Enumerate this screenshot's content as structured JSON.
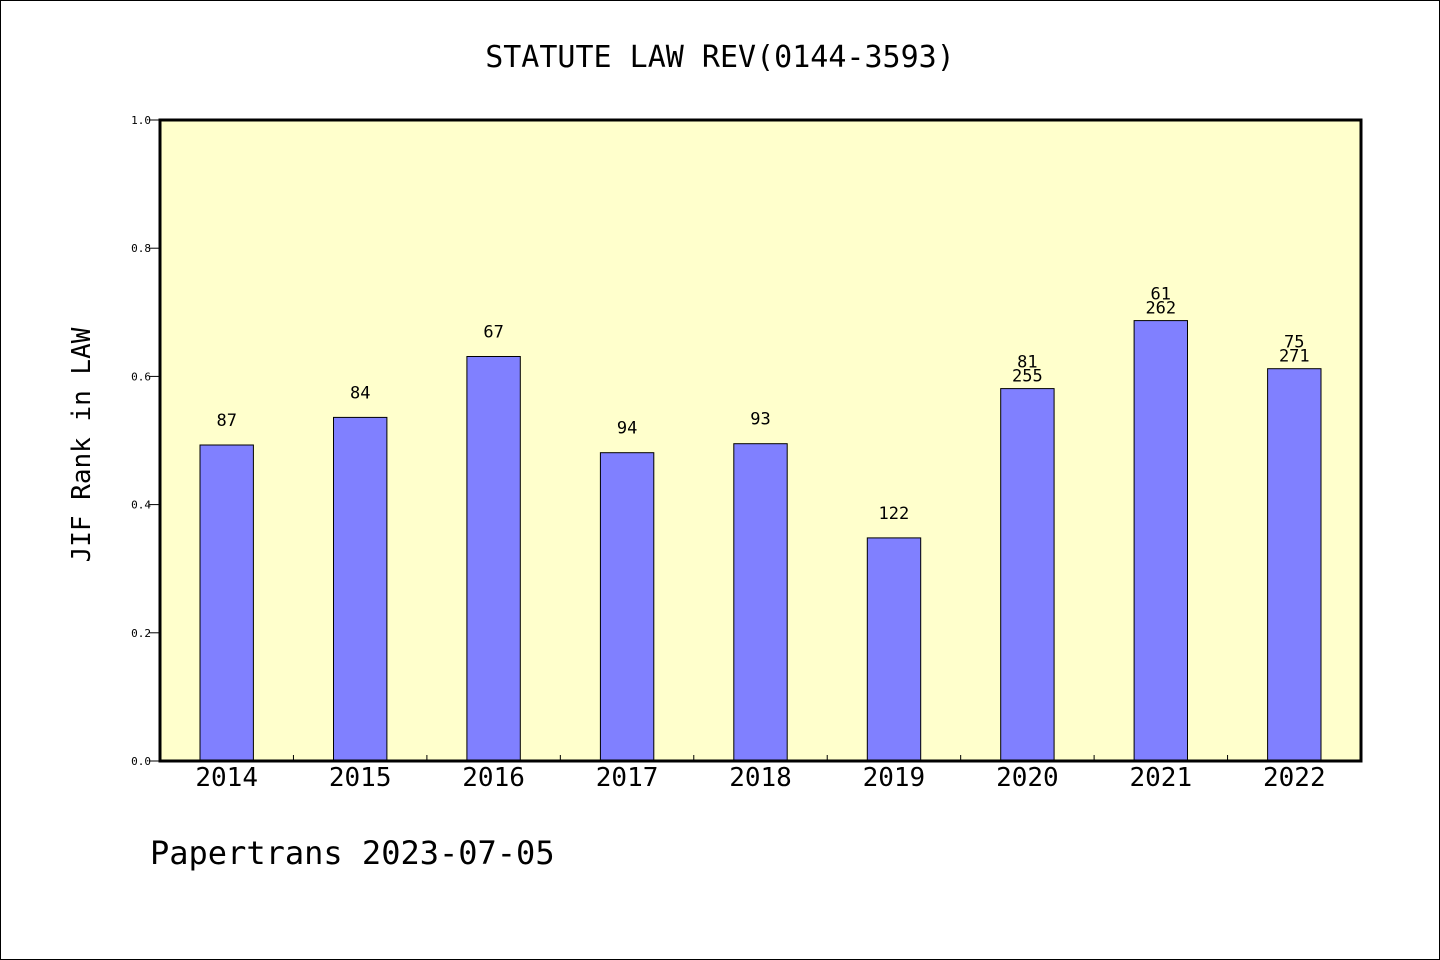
{
  "chart_data": {
    "type": "bar",
    "title": "STATUTE LAW REV(0144-3593)",
    "xlabel": "",
    "ylabel": "JIF Rank in LAW",
    "ylim": [
      0,
      1.0
    ],
    "yticks": [
      "0.0",
      "0.2",
      "0.4",
      "0.6",
      "0.8",
      "1.0"
    ],
    "categories": [
      "2014",
      "2015",
      "2016",
      "2017",
      "2018",
      "2019",
      "2020",
      "2021",
      "2022"
    ],
    "values": [
      0.493,
      0.536,
      0.631,
      0.481,
      0.495,
      0.348,
      0.581,
      0.687,
      0.612
    ],
    "data_labels": [
      [
        "87"
      ],
      [
        "84"
      ],
      [
        "67"
      ],
      [
        "94"
      ],
      [
        "93"
      ],
      [
        "122"
      ],
      [
        "81",
        "255"
      ],
      [
        "61",
        "262"
      ],
      [
        "75",
        "271"
      ]
    ],
    "plot_background": "#ffffcc",
    "bar_color": "#8080ff",
    "grid": false
  },
  "footer": "Papertrans 2023-07-05"
}
